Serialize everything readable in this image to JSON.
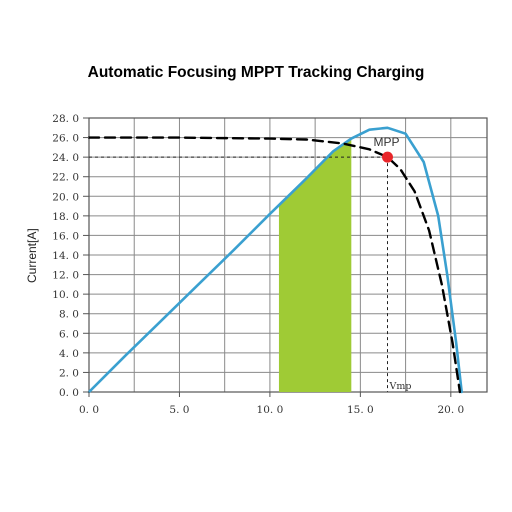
{
  "chart_data": {
    "type": "line",
    "title": "Automatic Focusing MPPT Tracking Charging",
    "xlabel": "",
    "ylabel": "Current[A]",
    "xlim": [
      0,
      22
    ],
    "ylim": [
      0,
      28
    ],
    "x_ticks": [
      "0.0",
      "5.0",
      "10.0",
      "15.0",
      "20.0"
    ],
    "y_ticks": [
      "0.0",
      "2.0",
      "4.0",
      "6.0",
      "8.0",
      "10.0",
      "12.0",
      "14.0",
      "16.0",
      "18.0",
      "20.0",
      "22.0",
      "24.0",
      "26.0",
      "28.0"
    ],
    "grid": true,
    "series": [
      {
        "style": "solid",
        "color": "#3aa0d0",
        "x": [
          0,
          2,
          4,
          6,
          8,
          10,
          12,
          13.5,
          14.5,
          15.5,
          16.5,
          17.5,
          18.5,
          19.3,
          19.8,
          20.3,
          20.6
        ],
        "y": [
          0,
          3.7,
          7.3,
          10.9,
          14.5,
          18.2,
          21.8,
          24.6,
          25.9,
          26.8,
          27.0,
          26.4,
          23.5,
          18.0,
          12.0,
          5.0,
          0
        ]
      },
      {
        "style": "dashed",
        "color": "#000000",
        "x": [
          0,
          5,
          10,
          12,
          14,
          15.5,
          16.5,
          17.2,
          18,
          18.8,
          19.5,
          20.1,
          20.5
        ],
        "y": [
          26,
          26,
          25.9,
          25.8,
          25.4,
          24.8,
          24.0,
          22.8,
          20.5,
          16.5,
          11.0,
          5.0,
          0
        ]
      }
    ],
    "mpp": {
      "label": "MPP",
      "x": 16.5,
      "y": 24.0,
      "color": "#e8262a"
    },
    "vmp_label": "Vmp",
    "shaded_region": {
      "x_start": 10.5,
      "x_end": 14.5,
      "color": "#9fcb35"
    },
    "guide_lines": {
      "current_at": 26.0,
      "mpp_current": 24.0,
      "mpp_voltage": 16.5
    }
  }
}
